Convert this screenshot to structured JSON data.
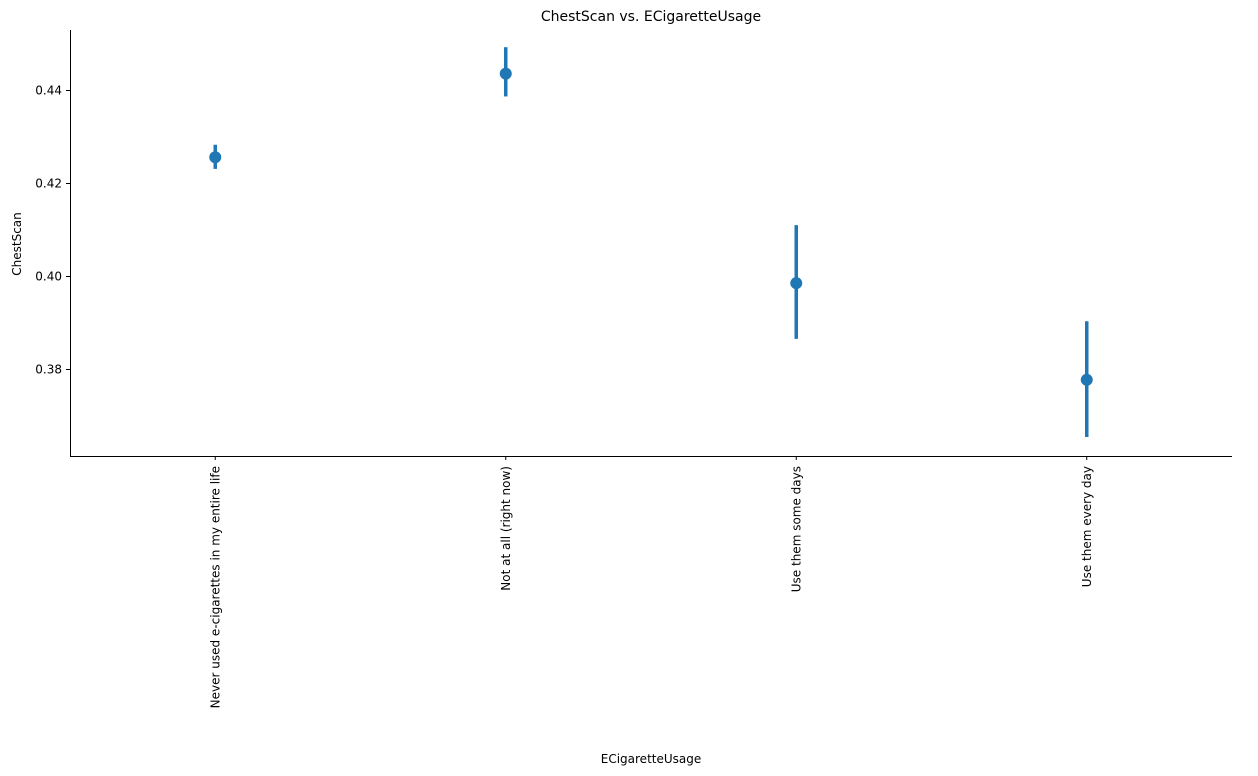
{
  "chart_data": {
    "type": "pointplot",
    "title": "ChestScan vs. ECigaretteUsage",
    "xlabel": "ECigaretteUsage",
    "ylabel": "ChestScan",
    "categories": [
      "Never used e-cigarettes in my entire life",
      "Not at all (right now)",
      "Use them some days",
      "Use them every day"
    ],
    "values": [
      0.4256,
      0.4436,
      0.3985,
      0.3777
    ],
    "ci_low": [
      0.4231,
      0.4387,
      0.3865,
      0.3654
    ],
    "ci_high": [
      0.4283,
      0.4493,
      0.411,
      0.3903
    ],
    "ylim": [
      0.3613,
      0.453
    ],
    "yticks": [
      0.38,
      0.4,
      0.42,
      0.44
    ],
    "ytick_labels": [
      "0.38",
      "0.40",
      "0.42",
      "0.44"
    ],
    "color": "#1f77b4",
    "grid": false
  }
}
